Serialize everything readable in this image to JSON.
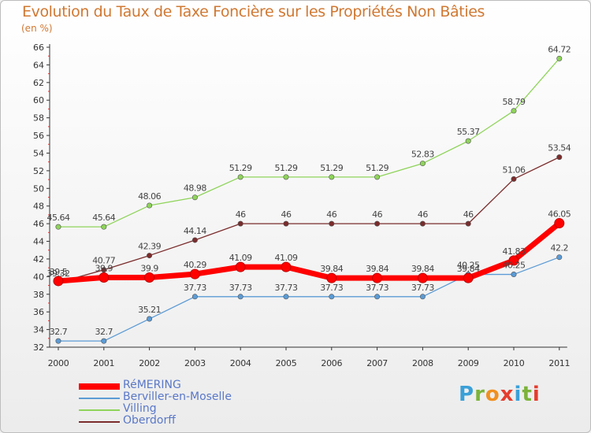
{
  "title": "Evolution du Taux de Taxe Foncière sur les Propriétés Non Bâties",
  "unit": "(en %)",
  "logo": {
    "text": "Proxiti",
    "letter_colors": [
      "#3aa0d8",
      "#7bb33a",
      "#f09020",
      "#e63c2d",
      "#3aa0d8",
      "#7bb33a",
      "#e63c2d"
    ]
  },
  "chart_data": {
    "type": "line",
    "title": "Evolution du Taux de Taxe Foncière sur les Propriétés Non Bâties",
    "ylabel": "(en %)",
    "xlabel": "",
    "x": [
      "2000",
      "2001",
      "2002",
      "2003",
      "2004",
      "2005",
      "2006",
      "2007",
      "2008",
      "2009",
      "2010",
      "2011"
    ],
    "ylim": [
      32,
      66
    ],
    "ytick_step": 2,
    "grid": false,
    "legend_position": "bottom-left",
    "series": [
      {
        "name": "RéMERING",
        "color": "#ff0000",
        "values": [
          39.5,
          39.9,
          39.9,
          40.29,
          41.09,
          41.09,
          39.84,
          39.84,
          39.84,
          39.84,
          41.83,
          46.05
        ],
        "labels": [
          "39.5",
          "39.9",
          "39.9",
          "40.29",
          "41.09",
          "41.09",
          "39.84",
          "39.84",
          "39.84",
          "39.84",
          "41.83",
          "46.05"
        ]
      },
      {
        "name": "Berviller-en-Moselle",
        "color": "#5b9bd5",
        "values": [
          32.7,
          32.7,
          35.21,
          37.73,
          37.73,
          37.73,
          37.73,
          37.73,
          37.73,
          40.25,
          40.25,
          42.2
        ],
        "labels": [
          "32.7",
          "32.7",
          "35.21",
          "37.73",
          "37.73",
          "37.73",
          "37.73",
          "37.73",
          "37.73",
          "40.25",
          "40.25",
          "42.2"
        ]
      },
      {
        "name": "Villing",
        "color": "#8fd45a",
        "values": [
          45.64,
          45.64,
          48.06,
          48.98,
          51.29,
          51.29,
          51.29,
          51.29,
          52.83,
          55.37,
          58.79,
          64.72
        ],
        "labels": [
          "45.64",
          "45.64",
          "48.06",
          "48.98",
          "51.29",
          "51.29",
          "51.29",
          "51.29",
          "52.83",
          "55.37",
          "58.79",
          "64.72"
        ]
      },
      {
        "name": "Oberdorff",
        "color": "#7b2c2c",
        "values": [
          39.32,
          40.77,
          42.39,
          44.14,
          46,
          46,
          46,
          46,
          46,
          46,
          51.06,
          53.54
        ],
        "labels": [
          "39.32",
          "40.77",
          "42.39",
          "44.14",
          "46",
          "46",
          "46",
          "46",
          "46",
          "46",
          "51.06",
          "53.54"
        ]
      }
    ]
  }
}
